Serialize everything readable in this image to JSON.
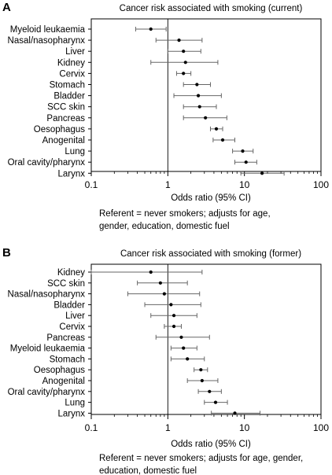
{
  "chart_data": [
    {
      "type": "scatter",
      "panel_label": "A",
      "title": "Cancer risk associated with smoking (current)",
      "xlabel": "Odds ratio (95% CI)",
      "x_scale": "log",
      "xlim": [
        0.1,
        100
      ],
      "xticks": [
        "0.1",
        "1",
        "10",
        "100"
      ],
      "reference_line_x": 1,
      "note_lines": [
        "Referent = never smokers; adjusts for age,",
        "gender, education, domestic fuel"
      ],
      "points": [
        {
          "label": "Myeloid leukaemia",
          "or": 0.6,
          "lo": 0.38,
          "hi": 0.95
        },
        {
          "label": "Nasal/nasopharynx",
          "or": 1.4,
          "lo": 0.7,
          "hi": 2.8
        },
        {
          "label": "Liver",
          "or": 1.6,
          "lo": 1.0,
          "hi": 2.7
        },
        {
          "label": "Kidney",
          "or": 1.7,
          "lo": 0.6,
          "hi": 4.5
        },
        {
          "label": "Cervix",
          "or": 1.6,
          "lo": 1.3,
          "hi": 2.0
        },
        {
          "label": "Stomach",
          "or": 2.4,
          "lo": 1.6,
          "hi": 3.6
        },
        {
          "label": "Bladder",
          "or": 2.5,
          "lo": 1.2,
          "hi": 5.0
        },
        {
          "label": "SCC skin",
          "or": 2.6,
          "lo": 1.6,
          "hi": 4.3
        },
        {
          "label": "Pancreas",
          "or": 3.1,
          "lo": 1.6,
          "hi": 5.9
        },
        {
          "label": "Oesophagus",
          "or": 4.3,
          "lo": 3.6,
          "hi": 5.2
        },
        {
          "label": "Anogenital",
          "or": 5.2,
          "lo": 3.9,
          "hi": 7.5
        },
        {
          "label": "Lung",
          "or": 9.5,
          "lo": 7.0,
          "hi": 13.0
        },
        {
          "label": "Oral cavity/pharynx",
          "or": 10.5,
          "lo": 7.5,
          "hi": 14.5
        },
        {
          "label": "Larynx",
          "or": 17.0,
          "lo": 9.0,
          "hi": 33.0
        }
      ]
    },
    {
      "type": "scatter",
      "panel_label": "B",
      "title": "Cancer risk associated with smoking (former)",
      "xlabel": "Odds ratio (95% CI)",
      "x_scale": "log",
      "xlim": [
        0.1,
        100
      ],
      "xticks": [
        "0.1",
        "1",
        "10",
        "100"
      ],
      "reference_line_x": 1,
      "note_lines": [
        "Referent = never smokers; adjusts for age, gender,",
        "education, domestic fuel"
      ],
      "points": [
        {
          "label": "Kidney",
          "or": 0.6,
          "lo": 0.1,
          "hi": 2.8
        },
        {
          "label": "SCC skin",
          "or": 0.8,
          "lo": 0.4,
          "hi": 1.8
        },
        {
          "label": "Nasal/nasopharynx",
          "or": 0.9,
          "lo": 0.3,
          "hi": 2.6
        },
        {
          "label": "Bladder",
          "or": 1.1,
          "lo": 0.5,
          "hi": 2.7
        },
        {
          "label": "Liver",
          "or": 1.2,
          "lo": 0.6,
          "hi": 2.4
        },
        {
          "label": "Cervix",
          "or": 1.2,
          "lo": 0.9,
          "hi": 1.5
        },
        {
          "label": "Pancreas",
          "or": 1.5,
          "lo": 0.7,
          "hi": 3.5
        },
        {
          "label": "Myeloid leukaemia",
          "or": 1.6,
          "lo": 1.1,
          "hi": 2.4
        },
        {
          "label": "Stomach",
          "or": 1.8,
          "lo": 1.1,
          "hi": 3.0
        },
        {
          "label": "Oesophagus",
          "or": 2.7,
          "lo": 2.2,
          "hi": 3.3
        },
        {
          "label": "Anogenital",
          "or": 2.8,
          "lo": 1.8,
          "hi": 4.5
        },
        {
          "label": "Oral cavity/pharynx",
          "or": 3.5,
          "lo": 2.5,
          "hi": 5.0
        },
        {
          "label": "Lung",
          "or": 4.2,
          "lo": 3.0,
          "hi": 6.0
        },
        {
          "label": "Larynx",
          "or": 7.5,
          "lo": 3.7,
          "hi": 16.0
        }
      ]
    }
  ]
}
